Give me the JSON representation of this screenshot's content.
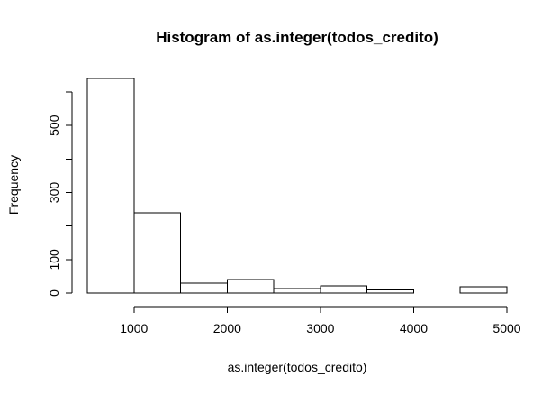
{
  "chart_data": {
    "type": "bar",
    "title": "Histogram of as.integer(todos_credito)",
    "xlabel": "as.integer(todos_credito)",
    "ylabel": "Frequency",
    "bins": [
      {
        "start": 500,
        "end": 1000,
        "count": 640
      },
      {
        "start": 1000,
        "end": 1500,
        "count": 240
      },
      {
        "start": 1500,
        "end": 2000,
        "count": 30
      },
      {
        "start": 2000,
        "end": 2500,
        "count": 40
      },
      {
        "start": 2500,
        "end": 3000,
        "count": 14
      },
      {
        "start": 3000,
        "end": 3500,
        "count": 22
      },
      {
        "start": 3500,
        "end": 4000,
        "count": 10
      },
      {
        "start": 4000,
        "end": 4500,
        "count": 0
      },
      {
        "start": 4500,
        "end": 5000,
        "count": 19
      }
    ],
    "xlim": [
      500,
      5000
    ],
    "ylim": [
      0,
      600
    ],
    "x_ticks": [
      1000,
      2000,
      3000,
      4000,
      5000
    ],
    "x_tick_labels": [
      "1000",
      "2000",
      "3000",
      "4000",
      "5000"
    ],
    "y_ticks": [
      0,
      100,
      200,
      300,
      400,
      500,
      600
    ],
    "y_tick_labels": [
      "0",
      "100",
      "",
      "300",
      "",
      "500",
      ""
    ],
    "grid": false,
    "bar_fill": "#ffffff",
    "bar_stroke": "#000000"
  }
}
